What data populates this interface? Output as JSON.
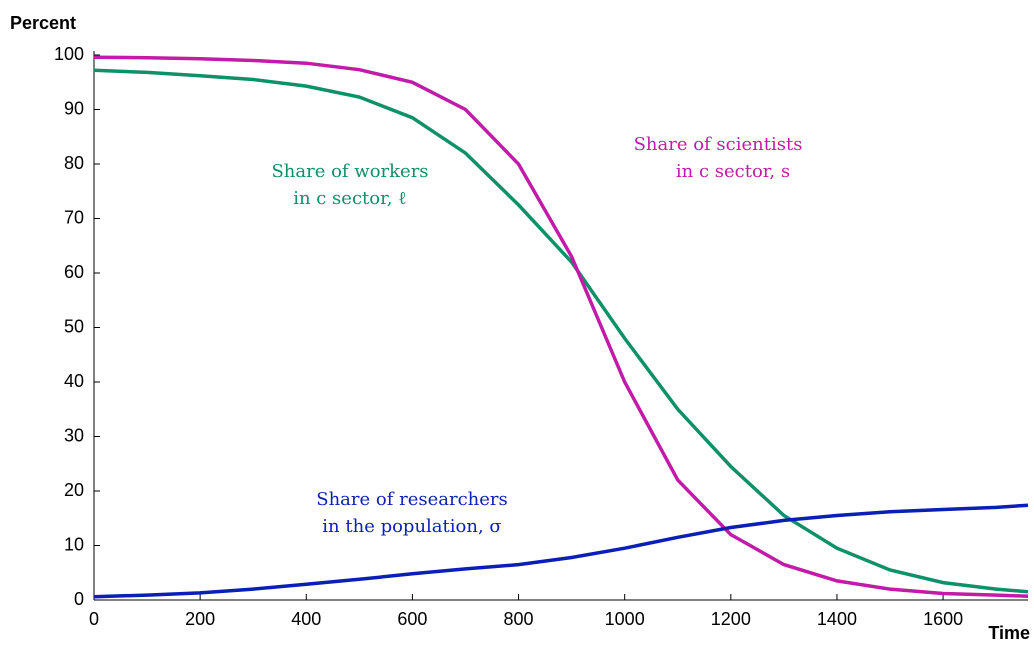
{
  "chart_data": {
    "type": "line",
    "ylabel": "Percent",
    "xlabel": "Time",
    "x": [
      0,
      100,
      200,
      300,
      400,
      500,
      600,
      700,
      800,
      900,
      1000,
      1100,
      1200,
      1300,
      1400,
      1500,
      1600,
      1700,
      1760
    ],
    "series": [
      {
        "name": "Share of workers in c sector, ℓ",
        "color": "#0e9068",
        "values": [
          97.2,
          96.8,
          96.2,
          95.5,
          94.3,
          92.3,
          88.5,
          82,
          72.5,
          62,
          48,
          35,
          24.5,
          15.5,
          9.5,
          5.5,
          3.2,
          2,
          1.5
        ]
      },
      {
        "name": "Share of scientists in c sector, s",
        "color": "#c21ba8",
        "values": [
          99.6,
          99.5,
          99.3,
          99,
          98.5,
          97.3,
          95,
          90,
          80,
          63,
          40,
          22,
          12,
          6.5,
          3.5,
          2,
          1.2,
          0.9,
          0.7
        ]
      },
      {
        "name": "Share of researchers in the population, σ",
        "color": "#0a1fb5",
        "values": [
          0.6,
          0.9,
          1.3,
          2,
          2.9,
          3.8,
          4.8,
          5.7,
          6.5,
          7.8,
          9.5,
          11.5,
          13.3,
          14.6,
          15.5,
          16.2,
          16.6,
          17,
          17.4
        ]
      }
    ],
    "annotations": [
      {
        "lines": [
          "Share of workers",
          "in c sector, ℓ"
        ]
      },
      {
        "lines": [
          "Share of scientists",
          "in c sector, s"
        ]
      },
      {
        "lines": [
          "Share of researchers",
          "in the population, σ"
        ]
      }
    ],
    "xlim": [
      0,
      1760
    ],
    "ylim": [
      0,
      100
    ],
    "xticks": [
      0,
      200,
      400,
      600,
      800,
      1000,
      1200,
      1400,
      1600
    ],
    "yticks": [
      0,
      10,
      20,
      30,
      40,
      50,
      60,
      70,
      80,
      90,
      100
    ],
    "grid": false
  }
}
